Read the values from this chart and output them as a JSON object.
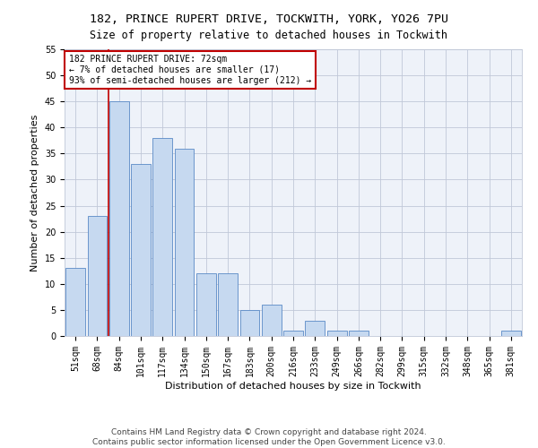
{
  "title1": "182, PRINCE RUPERT DRIVE, TOCKWITH, YORK, YO26 7PU",
  "title2": "Size of property relative to detached houses in Tockwith",
  "xlabel": "Distribution of detached houses by size in Tockwith",
  "ylabel": "Number of detached properties",
  "categories": [
    "51sqm",
    "68sqm",
    "84sqm",
    "101sqm",
    "117sqm",
    "134sqm",
    "150sqm",
    "167sqm",
    "183sqm",
    "200sqm",
    "216sqm",
    "233sqm",
    "249sqm",
    "266sqm",
    "282sqm",
    "299sqm",
    "315sqm",
    "332sqm",
    "348sqm",
    "365sqm",
    "381sqm"
  ],
  "values": [
    13,
    23,
    45,
    33,
    38,
    36,
    12,
    12,
    5,
    6,
    1,
    3,
    1,
    1,
    0,
    0,
    0,
    0,
    0,
    0,
    1
  ],
  "bar_color": "#c6d9f0",
  "bar_edge_color": "#5a8ac6",
  "vline_x_idx": 1,
  "vline_color": "#c00000",
  "annotation_text": "182 PRINCE RUPERT DRIVE: 72sqm\n← 7% of detached houses are smaller (17)\n93% of semi-detached houses are larger (212) →",
  "annotation_box_color": "white",
  "annotation_box_edge": "#c00000",
  "ylim": [
    0,
    55
  ],
  "yticks": [
    0,
    5,
    10,
    15,
    20,
    25,
    30,
    35,
    40,
    45,
    50,
    55
  ],
  "footer1": "Contains HM Land Registry data © Crown copyright and database right 2024.",
  "footer2": "Contains public sector information licensed under the Open Government Licence v3.0.",
  "bg_color": "#eef2f9",
  "grid_color": "#c0c8d8",
  "title1_fontsize": 9.5,
  "title2_fontsize": 8.5,
  "xlabel_fontsize": 8,
  "ylabel_fontsize": 8,
  "tick_fontsize": 7,
  "annotation_fontsize": 7,
  "footer_fontsize": 6.5
}
